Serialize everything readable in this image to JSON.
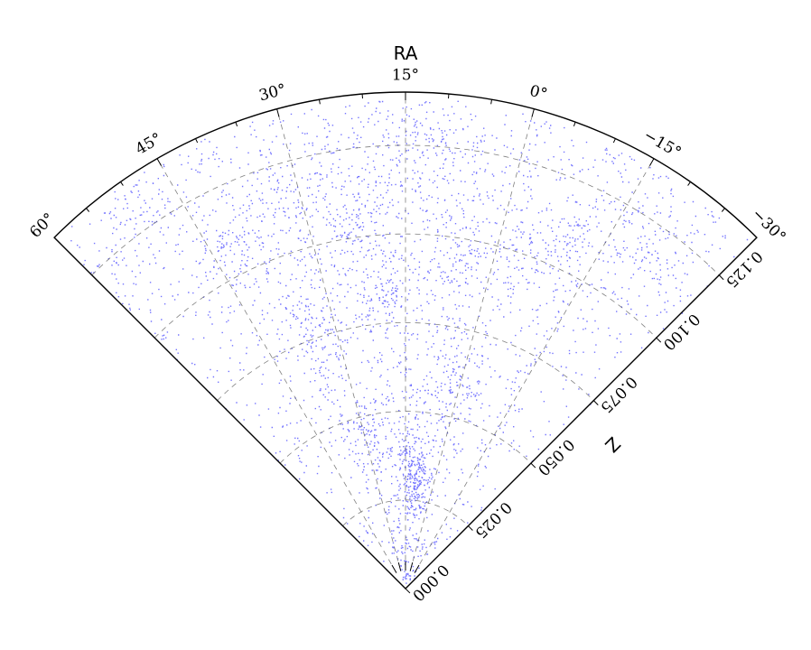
{
  "chart_data": {
    "type": "scatter",
    "projection": "polar wedge (redshift vs right ascension)",
    "theta_label": "RA",
    "r_label": "Z",
    "theta_range_deg": [
      -30,
      60
    ],
    "r_range": [
      0.0,
      0.14
    ],
    "theta_ticks": [
      {
        "value": 60,
        "label": "60°"
      },
      {
        "value": 45,
        "label": "45°"
      },
      {
        "value": 30,
        "label": "30°"
      },
      {
        "value": 15,
        "label": "15°"
      },
      {
        "value": 0,
        "label": "0°"
      },
      {
        "value": -15,
        "label": "−15°"
      },
      {
        "value": -30,
        "label": "−30°"
      }
    ],
    "r_ticks": [
      {
        "value": 0.0,
        "label": "0.000"
      },
      {
        "value": 0.025,
        "label": "0.025"
      },
      {
        "value": 0.05,
        "label": "0.050"
      },
      {
        "value": 0.075,
        "label": "0.075"
      },
      {
        "value": 0.1,
        "label": "0.100"
      },
      {
        "value": 0.125,
        "label": "0.125"
      }
    ],
    "grid": true,
    "series": [
      {
        "marker_color": "#0000ff",
        "points_description_count": 3600,
        "cluster_centers": [
          {
            "ra": 14,
            "z": 0.038
          },
          {
            "ra": 10,
            "z": 0.032
          },
          {
            "ra": 8,
            "z": 0.03
          },
          {
            "ra": 28,
            "z": 0.045
          },
          {
            "ra": 36,
            "z": 0.078
          },
          {
            "ra": 19,
            "z": 0.084
          },
          {
            "ra": 2,
            "z": 0.06
          },
          {
            "ra": -6,
            "z": 0.103
          },
          {
            "ra": 22,
            "z": 0.107
          },
          {
            "ra": 42,
            "z": 0.108
          },
          {
            "ra": 12,
            "z": 0.125
          },
          {
            "ra": -20,
            "z": 0.118
          },
          {
            "ra": 50,
            "z": 0.128
          },
          {
            "ra": 6,
            "z": 0.095
          },
          {
            "ra": 30,
            "z": 0.118
          }
        ]
      }
    ]
  }
}
